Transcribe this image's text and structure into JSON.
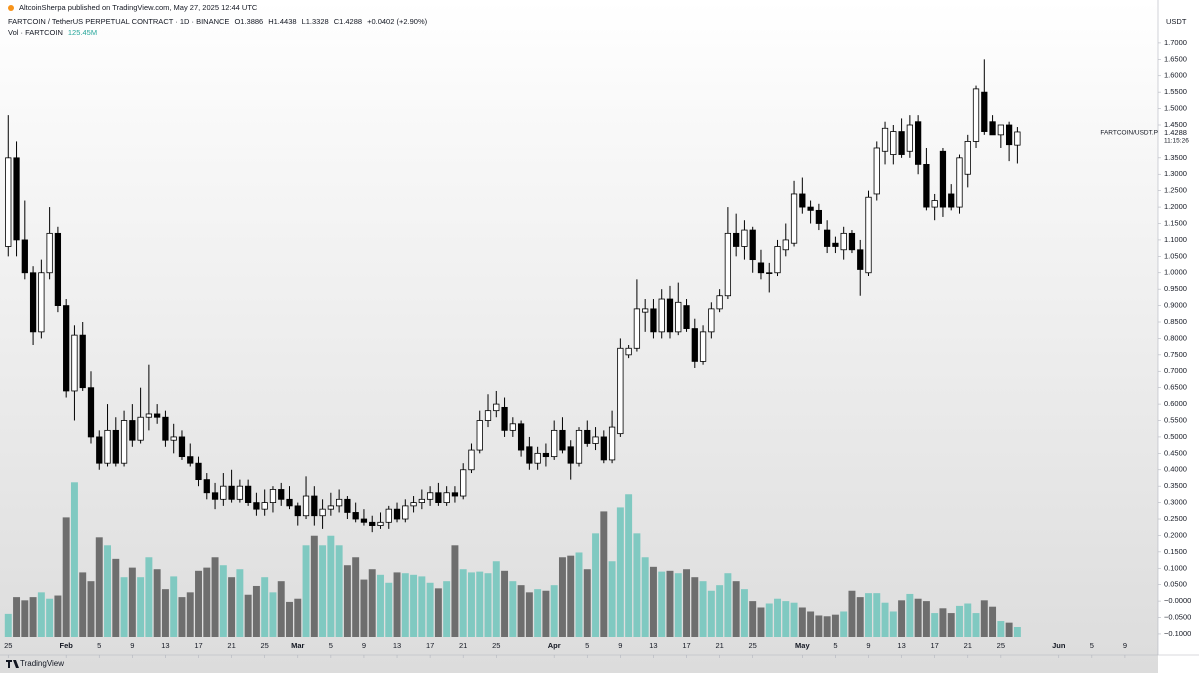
{
  "chart_data": {
    "type": "candlestick",
    "title": "AltcoinSherpa published on TradingView.com, May 27, 2025 12:44 UTC",
    "subtitle": "FARTCOIN / TetherUS PERPETUAL CONTRACT · 1D · BINANCE",
    "legend_values": [
      "O1.3886",
      "H1.4438",
      "L1.3328",
      "C1.4288",
      "+0.0402 (+2.90%)"
    ],
    "volume_label": "Vol · FARTCOIN",
    "volume_value": "125.45M",
    "y_axis_label": "USDT",
    "price_tag": "1.4288",
    "countdown": "11:15:26",
    "symbol_label": "FARTCOIN/USDT.P",
    "footer": "TradingView",
    "up_color": "#ffffff",
    "down_color": "#000000",
    "volume_up_color": "#80c9c1",
    "volume_down_color": "#6e6e6e",
    "x": [
      "2025-01-25",
      "2025-01-26",
      "2025-01-27",
      "2025-01-28",
      "2025-01-29",
      "2025-01-30",
      "2025-01-31",
      "2025-02-01",
      "2025-02-02",
      "2025-02-03",
      "2025-02-04",
      "2025-02-05",
      "2025-02-06",
      "2025-02-07",
      "2025-02-08",
      "2025-02-09",
      "2025-02-10",
      "2025-02-11",
      "2025-02-12",
      "2025-02-13",
      "2025-02-14",
      "2025-02-15",
      "2025-02-16",
      "2025-02-17",
      "2025-02-18",
      "2025-02-19",
      "2025-02-20",
      "2025-02-21",
      "2025-02-22",
      "2025-02-23",
      "2025-02-24",
      "2025-02-25",
      "2025-02-26",
      "2025-02-27",
      "2025-02-28",
      "2025-03-01",
      "2025-03-02",
      "2025-03-03",
      "2025-03-04",
      "2025-03-05",
      "2025-03-06",
      "2025-03-07",
      "2025-03-08",
      "2025-03-09",
      "2025-03-10",
      "2025-03-11",
      "2025-03-12",
      "2025-03-13",
      "2025-03-14",
      "2025-03-15",
      "2025-03-16",
      "2025-03-17",
      "2025-03-18",
      "2025-03-19",
      "2025-03-20",
      "2025-03-21",
      "2025-03-22",
      "2025-03-23",
      "2025-03-24",
      "2025-03-25",
      "2025-03-26",
      "2025-03-27",
      "2025-03-28",
      "2025-03-29",
      "2025-03-30",
      "2025-03-31",
      "2025-04-01",
      "2025-04-02",
      "2025-04-03",
      "2025-04-04",
      "2025-04-05",
      "2025-04-06",
      "2025-04-07",
      "2025-04-08",
      "2025-04-09",
      "2025-04-10",
      "2025-04-11",
      "2025-04-12",
      "2025-04-13",
      "2025-04-14",
      "2025-04-15",
      "2025-04-16",
      "2025-04-17",
      "2025-04-18",
      "2025-04-19",
      "2025-04-20",
      "2025-04-21",
      "2025-04-22",
      "2025-04-23",
      "2025-04-24",
      "2025-04-25",
      "2025-04-26",
      "2025-04-27",
      "2025-04-28",
      "2025-04-29",
      "2025-04-30",
      "2025-05-01",
      "2025-05-02",
      "2025-05-03",
      "2025-05-04",
      "2025-05-05",
      "2025-05-06",
      "2025-05-07",
      "2025-05-08",
      "2025-05-09",
      "2025-05-10",
      "2025-05-11",
      "2025-05-12",
      "2025-05-13",
      "2025-05-14",
      "2025-05-15",
      "2025-05-16",
      "2025-05-17",
      "2025-05-18",
      "2025-05-19",
      "2025-05-20",
      "2025-05-21",
      "2025-05-22",
      "2025-05-23",
      "2025-05-24",
      "2025-05-25",
      "2025-05-26",
      "2025-05-27"
    ],
    "open": [
      1.08,
      1.35,
      1.1,
      1.0,
      0.82,
      1.0,
      1.12,
      0.9,
      0.64,
      0.81,
      0.65,
      0.5,
      0.42,
      0.52,
      0.42,
      0.55,
      0.49,
      0.56,
      0.57,
      0.56,
      0.49,
      0.5,
      0.44,
      0.42,
      0.37,
      0.33,
      0.31,
      0.35,
      0.31,
      0.35,
      0.3,
      0.28,
      0.3,
      0.34,
      0.31,
      0.29,
      0.26,
      0.32,
      0.26,
      0.28,
      0.29,
      0.31,
      0.27,
      0.25,
      0.24,
      0.23,
      0.24,
      0.28,
      0.25,
      0.29,
      0.3,
      0.31,
      0.33,
      0.3,
      0.33,
      0.32,
      0.4,
      0.46,
      0.55,
      0.58,
      0.59,
      0.52,
      0.54,
      0.47,
      0.42,
      0.45,
      0.44,
      0.52,
      0.47,
      0.42,
      0.52,
      0.48,
      0.5,
      0.43,
      0.51,
      0.75,
      0.77,
      0.88,
      0.89,
      0.82,
      0.92,
      0.82,
      0.9,
      0.83,
      0.73,
      0.82,
      0.89,
      0.93,
      1.12,
      1.08,
      1.13,
      1.03,
      1.0,
      1.0,
      1.07,
      1.09,
      1.24,
      1.2,
      1.19,
      1.13,
      1.09,
      1.07,
      1.12,
      1.07,
      1.0,
      1.24,
      1.37,
      1.36,
      1.43,
      1.37,
      1.46,
      1.33,
      1.2,
      1.37,
      1.24,
      1.2,
      1.3,
      1.4,
      1.55,
      1.46,
      1.42,
      1.45,
      1.3886
    ],
    "high": [
      1.48,
      1.4,
      1.22,
      1.02,
      1.04,
      1.2,
      1.14,
      0.92,
      0.84,
      0.85,
      0.7,
      0.52,
      0.6,
      0.56,
      0.58,
      0.6,
      0.65,
      0.72,
      0.6,
      0.58,
      0.54,
      0.52,
      0.48,
      0.44,
      0.39,
      0.36,
      0.39,
      0.4,
      0.37,
      0.37,
      0.33,
      0.34,
      0.35,
      0.36,
      0.35,
      0.3,
      0.38,
      0.35,
      0.31,
      0.33,
      0.34,
      0.32,
      0.3,
      0.28,
      0.26,
      0.27,
      0.29,
      0.3,
      0.31,
      0.32,
      0.34,
      0.35,
      0.36,
      0.35,
      0.35,
      0.42,
      0.48,
      0.58,
      0.63,
      0.64,
      0.62,
      0.56,
      0.55,
      0.5,
      0.47,
      0.48,
      0.55,
      0.56,
      0.49,
      0.53,
      0.55,
      0.53,
      0.52,
      0.58,
      0.8,
      0.78,
      0.98,
      0.92,
      0.92,
      0.95,
      0.96,
      0.97,
      0.92,
      0.86,
      0.84,
      0.91,
      0.95,
      1.2,
      1.18,
      1.16,
      1.14,
      1.07,
      1.03,
      1.1,
      1.15,
      1.28,
      1.29,
      1.22,
      1.21,
      1.16,
      1.11,
      1.14,
      1.13,
      1.1,
      1.25,
      1.4,
      1.46,
      1.45,
      1.47,
      1.48,
      1.48,
      1.38,
      1.24,
      1.38,
      1.27,
      1.36,
      1.42,
      1.57,
      1.65,
      1.48,
      1.45,
      1.46,
      1.4438
    ],
    "low": [
      1.05,
      1.05,
      0.98,
      0.78,
      0.8,
      0.98,
      0.88,
      0.62,
      0.55,
      0.64,
      0.48,
      0.4,
      0.41,
      0.41,
      0.41,
      0.47,
      0.48,
      0.52,
      0.54,
      0.47,
      0.45,
      0.43,
      0.41,
      0.35,
      0.31,
      0.28,
      0.29,
      0.3,
      0.3,
      0.29,
      0.26,
      0.26,
      0.27,
      0.29,
      0.28,
      0.23,
      0.25,
      0.23,
      0.22,
      0.26,
      0.27,
      0.25,
      0.24,
      0.23,
      0.21,
      0.22,
      0.22,
      0.24,
      0.24,
      0.27,
      0.28,
      0.29,
      0.29,
      0.29,
      0.3,
      0.31,
      0.39,
      0.45,
      0.53,
      0.56,
      0.5,
      0.5,
      0.44,
      0.4,
      0.4,
      0.41,
      0.43,
      0.45,
      0.37,
      0.41,
      0.47,
      0.46,
      0.42,
      0.42,
      0.5,
      0.74,
      0.76,
      0.82,
      0.8,
      0.8,
      0.8,
      0.81,
      0.82,
      0.71,
      0.72,
      0.8,
      0.88,
      0.92,
      1.05,
      1.04,
      1.0,
      0.98,
      0.94,
      0.99,
      1.05,
      1.08,
      1.18,
      1.15,
      1.13,
      1.06,
      1.06,
      1.04,
      1.06,
      0.93,
      0.99,
      1.22,
      1.33,
      1.33,
      1.35,
      1.35,
      1.3,
      1.19,
      1.16,
      1.17,
      1.19,
      1.18,
      1.26,
      1.38,
      1.42,
      1.42,
      1.38,
      1.34,
      1.3328
    ],
    "close": [
      1.35,
      1.1,
      1.0,
      0.82,
      1.0,
      1.12,
      0.9,
      0.64,
      0.81,
      0.65,
      0.5,
      0.42,
      0.52,
      0.42,
      0.55,
      0.49,
      0.56,
      0.57,
      0.56,
      0.49,
      0.5,
      0.44,
      0.42,
      0.37,
      0.33,
      0.31,
      0.35,
      0.31,
      0.35,
      0.3,
      0.28,
      0.3,
      0.34,
      0.31,
      0.29,
      0.26,
      0.32,
      0.26,
      0.28,
      0.29,
      0.31,
      0.27,
      0.25,
      0.24,
      0.23,
      0.24,
      0.28,
      0.25,
      0.29,
      0.3,
      0.31,
      0.33,
      0.3,
      0.33,
      0.32,
      0.4,
      0.46,
      0.55,
      0.58,
      0.6,
      0.52,
      0.54,
      0.46,
      0.42,
      0.45,
      0.44,
      0.52,
      0.46,
      0.42,
      0.52,
      0.48,
      0.5,
      0.43,
      0.53,
      0.77,
      0.77,
      0.89,
      0.89,
      0.82,
      0.92,
      0.82,
      0.91,
      0.83,
      0.73,
      0.82,
      0.89,
      0.93,
      1.12,
      1.08,
      1.13,
      1.04,
      1.0,
      1.0,
      1.08,
      1.1,
      1.24,
      1.2,
      1.19,
      1.15,
      1.08,
      1.08,
      1.12,
      1.07,
      1.01,
      1.23,
      1.38,
      1.44,
      1.43,
      1.36,
      1.45,
      1.33,
      1.2,
      1.22,
      1.2,
      1.2,
      1.35,
      1.4,
      1.56,
      1.43,
      1.42,
      1.45,
      1.39,
      1.4288
    ],
    "volume": [
      290,
      500,
      460,
      500,
      560,
      480,
      520,
      1500,
      1940,
      810,
      700,
      1250,
      1150,
      980,
      750,
      870,
      750,
      1000,
      850,
      600,
      760,
      500,
      560,
      830,
      870,
      1000,
      900,
      750,
      850,
      530,
      640,
      750,
      560,
      700,
      440,
      480,
      1150,
      1270,
      1150,
      1270,
      1150,
      900,
      1000,
      720,
      850,
      780,
      680,
      810,
      800,
      780,
      760,
      680,
      610,
      700,
      1150,
      850,
      810,
      820,
      800,
      950,
      830,
      700,
      650,
      560,
      600,
      580,
      650,
      1000,
      1020,
      1060,
      850,
      1300,
      1575,
      950,
      1625,
      1790,
      1300,
      1000,
      880,
      820,
      830,
      800,
      850,
      750,
      700,
      580,
      650,
      800,
      700,
      600,
      450,
      370,
      420,
      480,
      450,
      430,
      370,
      320,
      270,
      260,
      280,
      320,
      580,
      500,
      550,
      550,
      430,
      320,
      460,
      540,
      480,
      450,
      300,
      360,
      300,
      390,
      420,
      300,
      460,
      380,
      200,
      180,
      125.45
    ],
    "volume_ylim": [
      0,
      7800
    ],
    "xlim": [
      "2025-01-24",
      "2025-06-13"
    ],
    "xticks": [
      {
        "value": "2025-01-25",
        "label": "25"
      },
      {
        "value": "2025-02-01",
        "label": "Feb"
      },
      {
        "value": "2025-02-05",
        "label": "5"
      },
      {
        "value": "2025-02-09",
        "label": "9"
      },
      {
        "value": "2025-02-13",
        "label": "13"
      },
      {
        "value": "2025-02-17",
        "label": "17"
      },
      {
        "value": "2025-02-21",
        "label": "21"
      },
      {
        "value": "2025-02-25",
        "label": "25"
      },
      {
        "value": "2025-03-01",
        "label": "Mar"
      },
      {
        "value": "2025-03-05",
        "label": "5"
      },
      {
        "value": "2025-03-09",
        "label": "9"
      },
      {
        "value": "2025-03-13",
        "label": "13"
      },
      {
        "value": "2025-03-17",
        "label": "17"
      },
      {
        "value": "2025-03-21",
        "label": "21"
      },
      {
        "value": "2025-03-25",
        "label": "25"
      },
      {
        "value": "2025-04-01",
        "label": "Apr"
      },
      {
        "value": "2025-04-05",
        "label": "5"
      },
      {
        "value": "2025-04-09",
        "label": "9"
      },
      {
        "value": "2025-04-13",
        "label": "13"
      },
      {
        "value": "2025-04-17",
        "label": "17"
      },
      {
        "value": "2025-04-21",
        "label": "21"
      },
      {
        "value": "2025-04-25",
        "label": "25"
      },
      {
        "value": "2025-05-01",
        "label": "May"
      },
      {
        "value": "2025-05-05",
        "label": "5"
      },
      {
        "value": "2025-05-09",
        "label": "9"
      },
      {
        "value": "2025-05-13",
        "label": "13"
      },
      {
        "value": "2025-05-17",
        "label": "17"
      },
      {
        "value": "2025-05-21",
        "label": "21"
      },
      {
        "value": "2025-05-25",
        "label": "25"
      },
      {
        "value": "2025-06-01",
        "label": "Jun"
      },
      {
        "value": "2025-06-05",
        "label": "5"
      },
      {
        "value": "2025-06-09",
        "label": "9"
      }
    ],
    "ylim": [
      -0.155,
      1.785
    ],
    "yticks": [
      {
        "value": 1.7,
        "label": "1.7000"
      },
      {
        "value": 1.65,
        "label": "1.6500"
      },
      {
        "value": 1.6,
        "label": "1.6000"
      },
      {
        "value": 1.55,
        "label": "1.5500"
      },
      {
        "value": 1.5,
        "label": "1.5000"
      },
      {
        "value": 1.45,
        "label": "1.4500"
      },
      {
        "value": 1.35,
        "label": "1.3500"
      },
      {
        "value": 1.3,
        "label": "1.3000"
      },
      {
        "value": 1.25,
        "label": "1.2500"
      },
      {
        "value": 1.2,
        "label": "1.2000"
      },
      {
        "value": 1.15,
        "label": "1.1500"
      },
      {
        "value": 1.1,
        "label": "1.1000"
      },
      {
        "value": 1.05,
        "label": "1.0500"
      },
      {
        "value": 1.0,
        "label": "1.0000"
      },
      {
        "value": 0.95,
        "label": "0.9500"
      },
      {
        "value": 0.9,
        "label": "0.9000"
      },
      {
        "value": 0.85,
        "label": "0.8500"
      },
      {
        "value": 0.8,
        "label": "0.8000"
      },
      {
        "value": 0.75,
        "label": "0.7500"
      },
      {
        "value": 0.7,
        "label": "0.7000"
      },
      {
        "value": 0.65,
        "label": "0.6500"
      },
      {
        "value": 0.6,
        "label": "0.6000"
      },
      {
        "value": 0.55,
        "label": "0.5500"
      },
      {
        "value": 0.5,
        "label": "0.5000"
      },
      {
        "value": 0.45,
        "label": "0.4500"
      },
      {
        "value": 0.4,
        "label": "0.4000"
      },
      {
        "value": 0.35,
        "label": "0.3500"
      },
      {
        "value": 0.3,
        "label": "0.3000"
      },
      {
        "value": 0.25,
        "label": "0.2500"
      },
      {
        "value": 0.2,
        "label": "0.2000"
      },
      {
        "value": 0.15,
        "label": "0.1500"
      },
      {
        "value": 0.1,
        "label": "0.1000"
      },
      {
        "value": 0.05,
        "label": "0.0500"
      },
      {
        "value": 0.0,
        "label": "−0.0000"
      },
      {
        "value": -0.05,
        "label": "−0.0500"
      },
      {
        "value": -0.1,
        "label": "−0.1000"
      }
    ],
    "grid": false
  }
}
